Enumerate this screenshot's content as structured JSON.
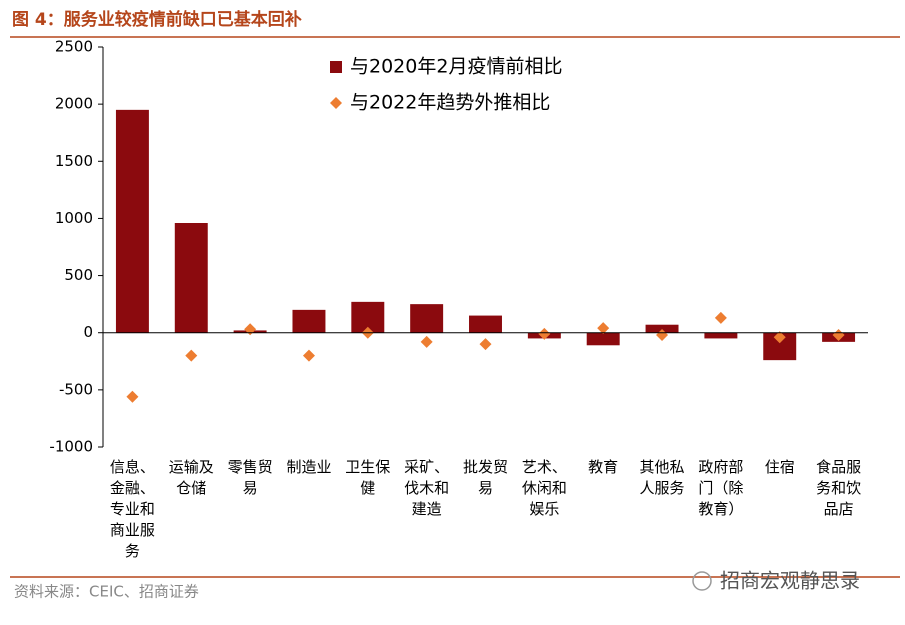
{
  "figure_title": "图 4：服务业较疫情前缺口已基本回补",
  "source": "资料来源：CEIC、招商证券",
  "watermark": "招商宏观静思录",
  "chart_data": {
    "type": "bar",
    "categories": [
      "信息、金融、专业和商业服务",
      "运输及仓储",
      "零售贸易",
      "制造业",
      "卫生保健",
      "采矿、伐木和建造",
      "批发贸易",
      "艺术、休闲和娱乐",
      "教育",
      "其他私人服务",
      "政府部门（除教育）",
      "住宿",
      "食品服务和饮品店"
    ],
    "series": [
      {
        "name": "与2020年2月疫情前相比",
        "type": "bar",
        "color": "#8b0a0e",
        "values": [
          1950,
          960,
          20,
          200,
          270,
          250,
          150,
          -50,
          -110,
          70,
          -50,
          -240,
          -80
        ]
      },
      {
        "name": "与2022年趋势外推相比",
        "type": "scatter",
        "color": "#ed7d31",
        "values": [
          -560,
          -200,
          30,
          -200,
          0,
          -80,
          -100,
          -10,
          40,
          -20,
          130,
          -40,
          -20
        ]
      }
    ],
    "ylim": [
      -1000,
      2500
    ],
    "yticks": [
      -1000,
      -500,
      0,
      500,
      1000,
      1500,
      2000,
      2500
    ]
  }
}
